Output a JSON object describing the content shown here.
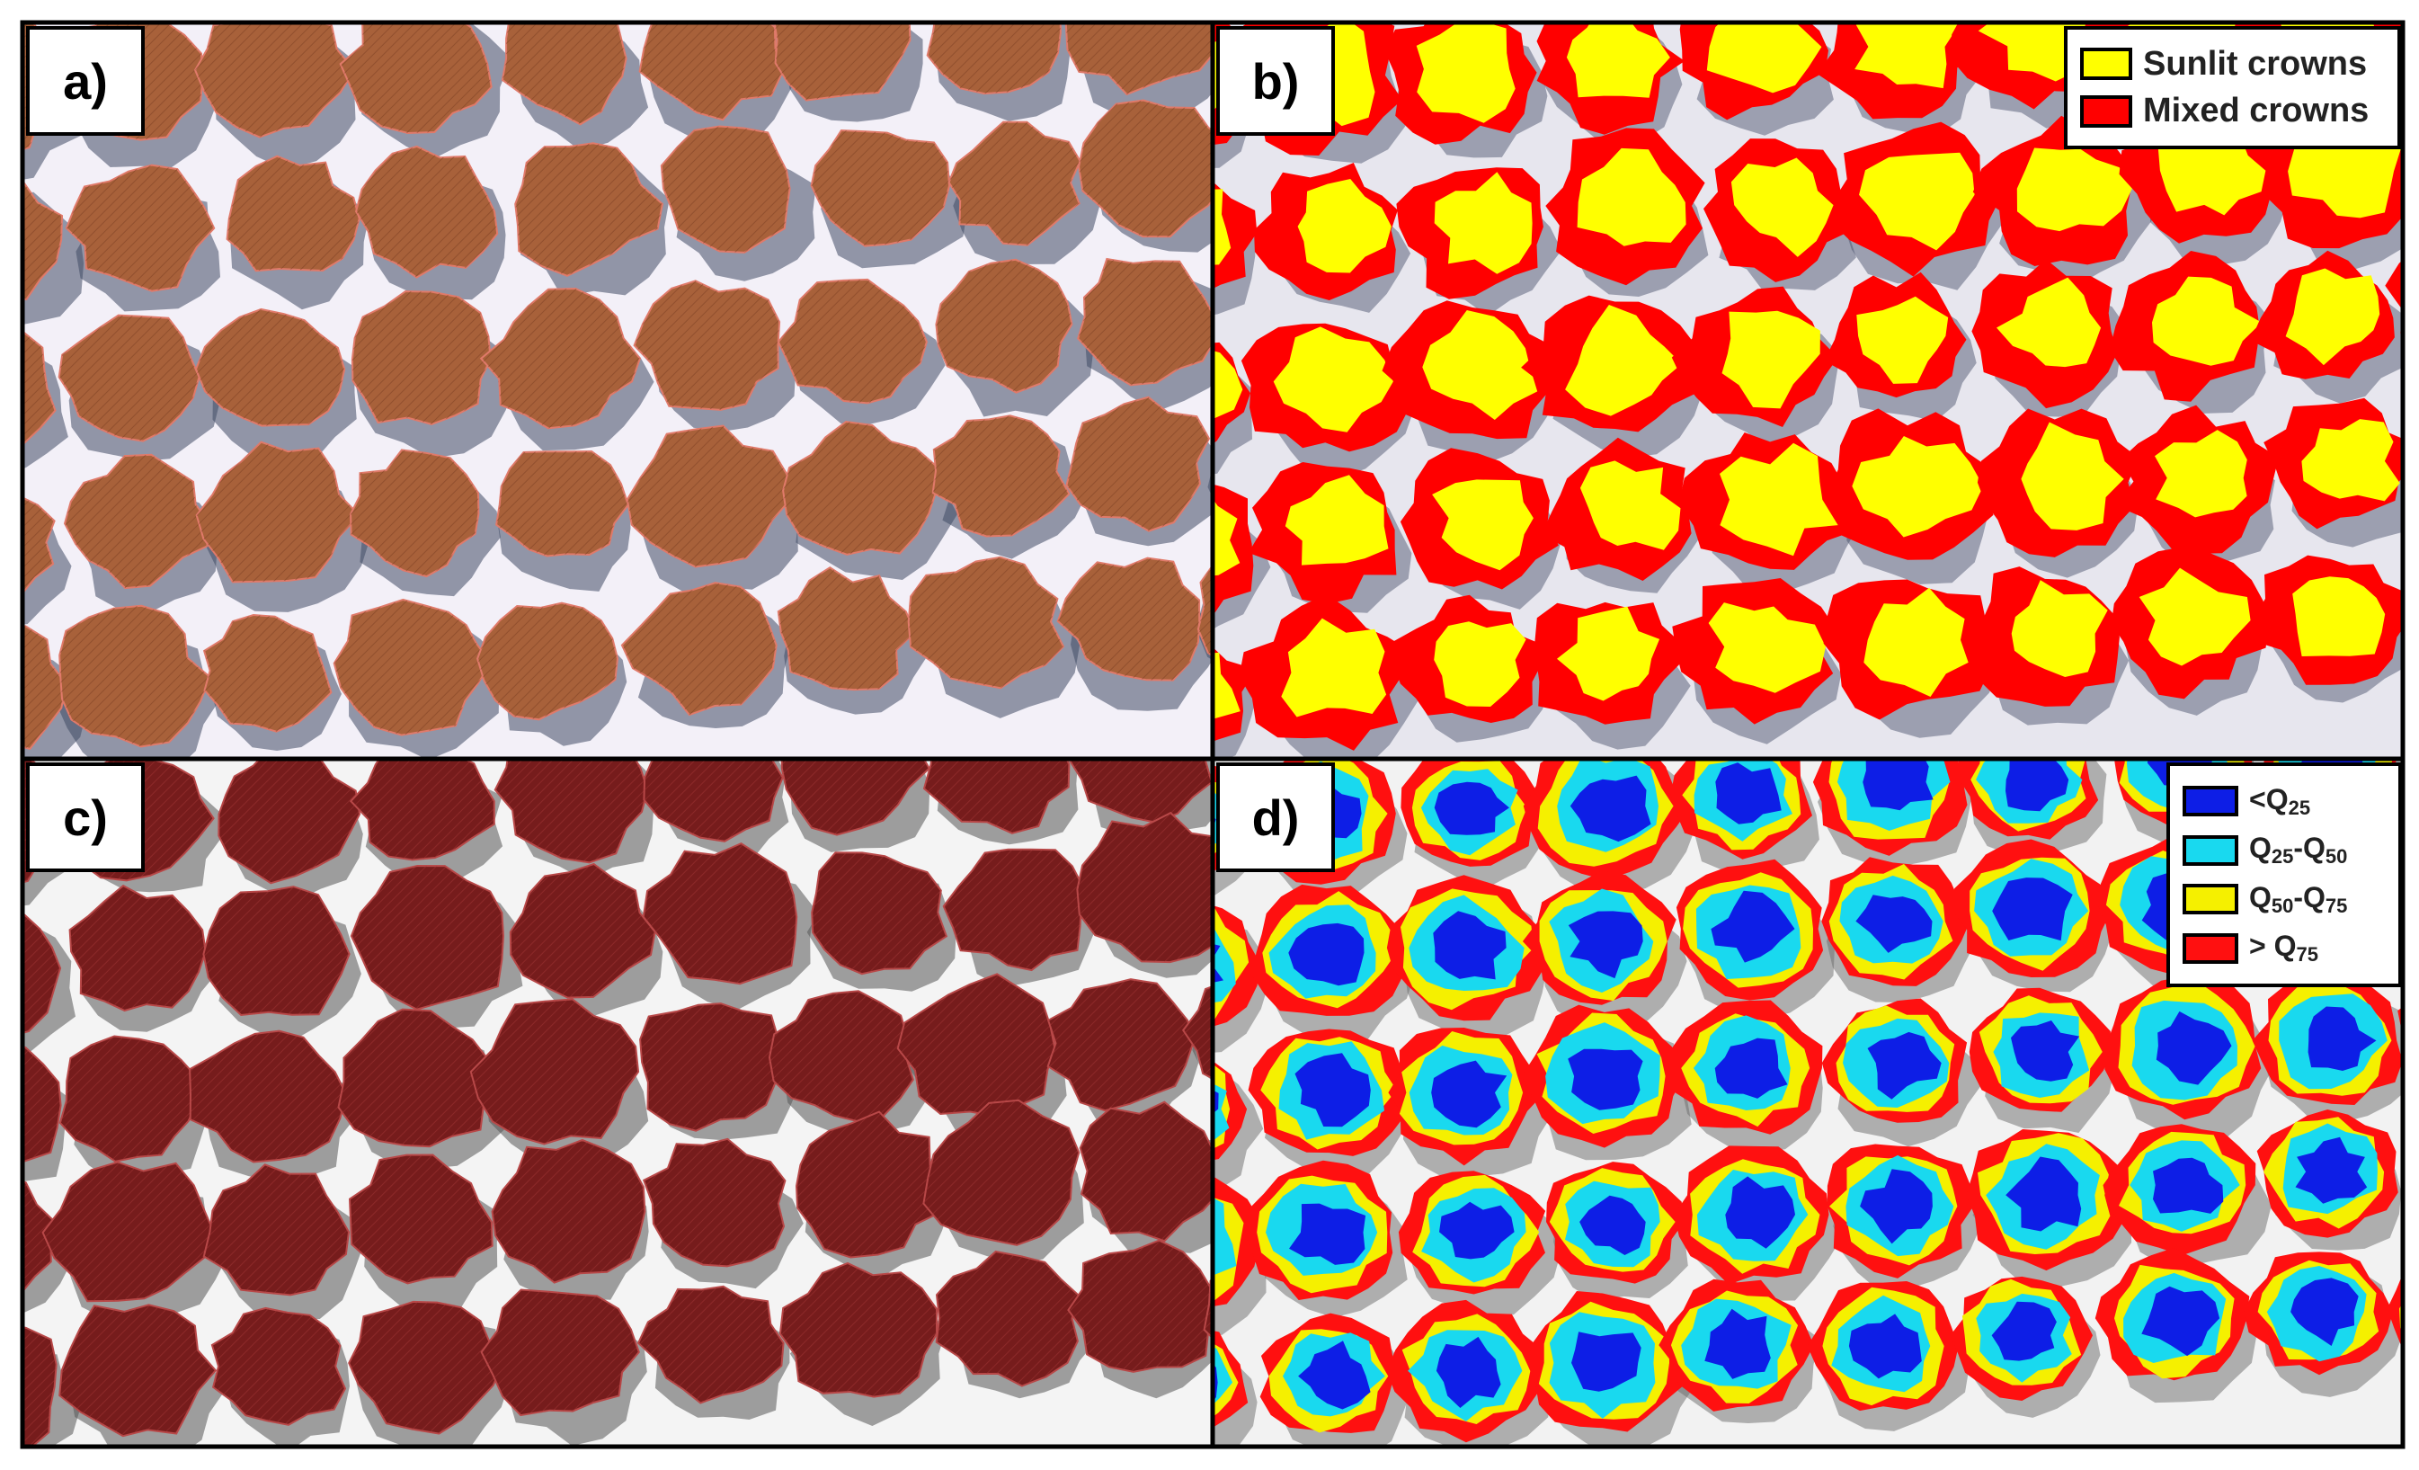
{
  "colors": {
    "soil": "#f3f0f8",
    "shadow": "#404a64",
    "crown_a": "#a8613a",
    "crown_a_dark": "#7a3e22",
    "crown_a_edge": "#e07a6a",
    "crown_c": "#761c1c",
    "crown_c_edge": "#b84848",
    "sunlit": "#ffff00",
    "mixed": "#ff0000",
    "q_lt25": "#0d1ee6",
    "q_25_50": "#19d9ef",
    "q_50_75": "#f5f000",
    "q_gt75": "#ff1010",
    "frame": "#000000"
  },
  "panels": [
    {
      "id": "a",
      "label": "a)",
      "content": "RGB orthomosaic of hedgerow tree rows"
    },
    {
      "id": "b",
      "label": "b)",
      "content": "Classified sunlit and mixed crown pixels"
    },
    {
      "id": "c",
      "label": "c)",
      "content": "Grayscale image with crown polygons"
    },
    {
      "id": "d",
      "label": "d)",
      "content": "Crown pixels classified by quartile"
    }
  ],
  "legend_b": [
    {
      "label": "Sunlit crowns",
      "color": "#ffff00"
    },
    {
      "label": "Mixed crowns",
      "color": "#ff0000"
    }
  ],
  "legend_d": [
    {
      "prefix": "<Q",
      "sub": "25",
      "mid": "",
      "sub2": "",
      "color": "#0d1ee6"
    },
    {
      "prefix": "Q",
      "sub": "25",
      "mid": "-Q",
      "sub2": "50",
      "color": "#19d9ef"
    },
    {
      "prefix": "Q",
      "sub": "50",
      "mid": "-Q",
      "sub2": "75",
      "color": "#f5f000"
    },
    {
      "prefix": "> Q",
      "sub": "75",
      "mid": "",
      "sub2": "",
      "color": "#ff1010"
    }
  ]
}
